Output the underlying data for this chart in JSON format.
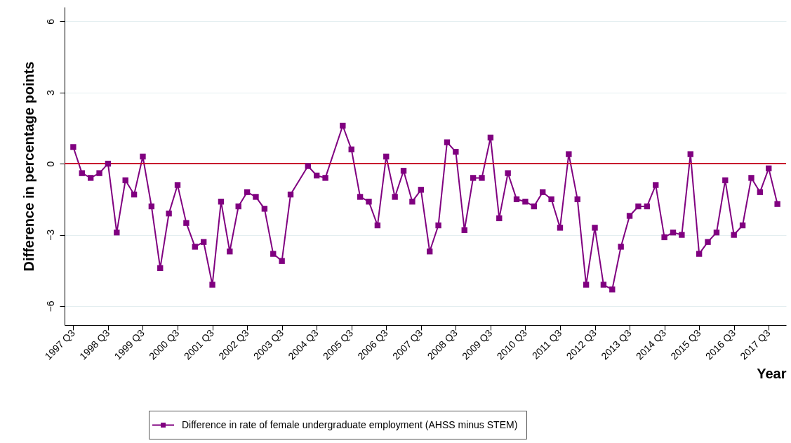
{
  "chart_data": {
    "type": "line",
    "categories": [
      "1997 Q3",
      null,
      null,
      null,
      "1998 Q3",
      null,
      null,
      null,
      "1999 Q3",
      null,
      null,
      null,
      "2000 Q3",
      null,
      null,
      null,
      "2001 Q3",
      null,
      null,
      null,
      "2002 Q3",
      null,
      null,
      null,
      "2003 Q3",
      null,
      null,
      null,
      "2004 Q3",
      null,
      null,
      null,
      "2005 Q3",
      null,
      null,
      null,
      "2006 Q3",
      null,
      null,
      null,
      "2007 Q3",
      null,
      null,
      null,
      "2008 Q3",
      null,
      null,
      null,
      "2009 Q3",
      null,
      null,
      null,
      "2010 Q3",
      null,
      null,
      null,
      "2011 Q3",
      null,
      null,
      null,
      "2012 Q3",
      null,
      null,
      null,
      "2013 Q3",
      null,
      null,
      null,
      "2014 Q3",
      null,
      null,
      null,
      "2015 Q3",
      null,
      null,
      null,
      "2016 Q3",
      null,
      null,
      null,
      "2017 Q3",
      null
    ],
    "series": [
      {
        "name": "Difference in rate of female undergraduate employment (AHSS minus STEM)",
        "color": "#800080",
        "values": [
          0.7,
          -0.4,
          -0.6,
          -0.4,
          0.0,
          -2.9,
          -0.7,
          -1.3,
          0.3,
          -1.8,
          -4.4,
          -2.1,
          -0.9,
          -2.5,
          -3.5,
          -3.3,
          -5.1,
          -1.6,
          -3.7,
          -1.8,
          -1.2,
          -1.4,
          -1.9,
          -3.8,
          -4.1,
          -1.3,
          null,
          -0.1,
          -0.5,
          -0.6,
          null,
          1.6,
          0.6,
          -1.4,
          -1.6,
          -2.6,
          0.3,
          -1.4,
          -0.3,
          -1.6,
          -1.1,
          -3.7,
          -2.6,
          0.9,
          0.5,
          -2.8,
          -0.6,
          -0.6,
          1.1,
          -2.3,
          -0.4,
          -1.5,
          -1.6,
          -1.8,
          -1.2,
          -1.5,
          -2.7,
          0.4,
          -1.5,
          -5.1,
          -2.7,
          -5.1,
          -5.3,
          -3.5,
          -2.2,
          -1.8,
          -1.8,
          -0.9,
          -3.1,
          -2.9,
          -3.0,
          0.4,
          -3.8,
          -3.3,
          -2.9,
          -0.7,
          -3.0,
          -2.6,
          -0.6,
          -1.2,
          -0.2,
          -1.7
        ]
      }
    ],
    "xlabel": "Year",
    "ylabel": "Difference in percentage points",
    "ylim": [
      -6.8,
      6.6
    ],
    "yticks": [
      -6,
      -3,
      0,
      3,
      6
    ],
    "grid": "y",
    "legend": "bottom",
    "marker": "square",
    "ref_lines": [
      {
        "axis": "y",
        "value": 0,
        "color": "#c8102e"
      }
    ]
  }
}
